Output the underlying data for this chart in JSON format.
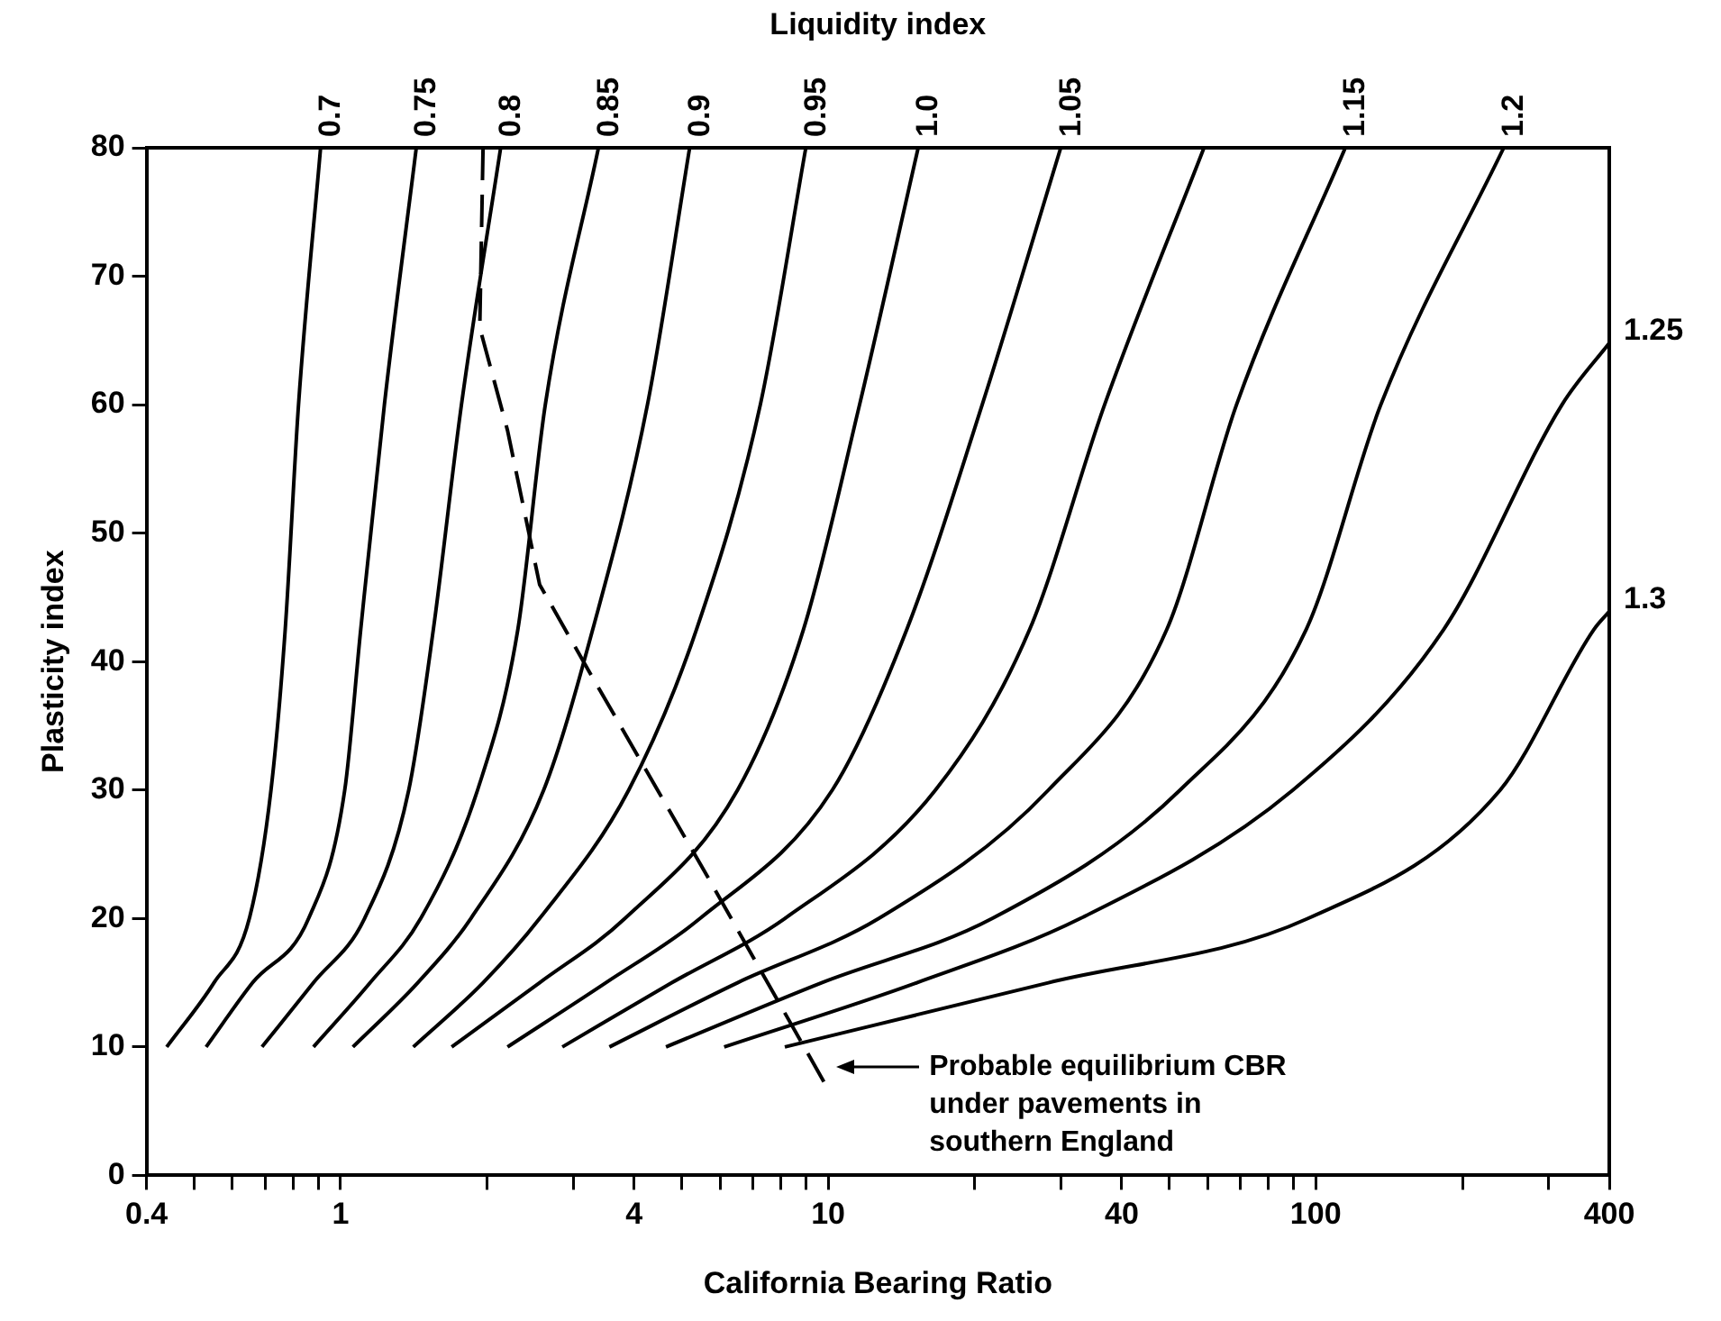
{
  "chart_data": {
    "type": "line",
    "xlabel": "California Bearing Ratio",
    "ylabel": "Plasticity index",
    "legend_title": "Liquidity index",
    "log": "x",
    "grid": false,
    "legend": false,
    "marker": "none",
    "xlim": [
      0.4,
      400
    ],
    "ylim": [
      0,
      80
    ],
    "xticks": [
      0.4,
      {
        "value": 0.5,
        "label": null
      },
      {
        "value": 0.6,
        "label": null
      },
      {
        "value": 0.7,
        "label": null
      },
      {
        "value": 0.8,
        "label": null
      },
      {
        "value": 0.9,
        "label": null
      },
      1,
      {
        "value": 2,
        "label": null
      },
      {
        "value": 3,
        "label": null
      },
      4,
      {
        "value": 5,
        "label": null
      },
      {
        "value": 6,
        "label": null
      },
      {
        "value": 7,
        "label": null
      },
      {
        "value": 8,
        "label": null
      },
      {
        "value": 9,
        "label": null
      },
      10,
      {
        "value": 20,
        "label": null
      },
      {
        "value": 30,
        "label": null
      },
      40,
      {
        "value": 50,
        "label": null
      },
      {
        "value": 60,
        "label": null
      },
      {
        "value": 70,
        "label": null
      },
      {
        "value": 80,
        "label": null
      },
      {
        "value": 90,
        "label": null
      },
      100,
      {
        "value": 200,
        "label": null
      },
      {
        "value": 300,
        "label": null
      },
      400
    ],
    "yticks": [
      0,
      10,
      20,
      30,
      40,
      50,
      60,
      70,
      80
    ],
    "series": [
      {
        "name": "0.7",
        "color": "#000000",
        "x": [
          0.44,
          0.55,
          0.65,
          0.72,
          0.77,
          0.82,
          0.91
        ],
        "values": [
          10,
          15,
          20,
          30,
          42.5,
          60,
          80
        ]
      },
      {
        "name": "0.75",
        "color": "#000000",
        "x": [
          0.53,
          0.66,
          0.86,
          1.02,
          1.1,
          1.23,
          1.43
        ],
        "values": [
          10,
          15,
          20,
          30,
          42.5,
          60,
          80
        ]
      },
      {
        "name": "0.8",
        "color": "#000000",
        "x": [
          0.69,
          0.88,
          1.12,
          1.38,
          1.55,
          1.77,
          2.13
        ],
        "values": [
          10,
          15,
          20,
          30,
          42.5,
          60,
          80
        ]
      },
      {
        "name": "0.85",
        "color": "#000000",
        "x": [
          0.88,
          1.15,
          1.46,
          1.91,
          2.31,
          2.63,
          3.38
        ],
        "values": [
          10,
          15,
          20,
          30,
          42.5,
          60,
          80
        ]
      },
      {
        "name": "0.9",
        "color": "#000000",
        "x": [
          1.06,
          1.44,
          1.85,
          2.61,
          3.29,
          4.26,
          5.2
        ],
        "values": [
          10,
          15,
          20,
          30,
          42.5,
          60,
          80
        ]
      },
      {
        "name": "0.95",
        "color": "#000000",
        "x": [
          1.41,
          1.96,
          2.56,
          3.9,
          5.37,
          7.26,
          9.0
        ],
        "values": [
          10,
          15,
          20,
          30,
          42.5,
          60,
          80
        ]
      },
      {
        "name": "1.0",
        "color": "#000000",
        "x": [
          1.69,
          2.56,
          3.83,
          6.52,
          8.9,
          11.6,
          15.3
        ],
        "values": [
          10,
          15,
          20,
          30,
          42.5,
          60,
          80
        ]
      },
      {
        "name": "1.05",
        "color": "#000000",
        "x": [
          2.2,
          3.5,
          5.46,
          10.2,
          14.5,
          20.7,
          30
        ],
        "values": [
          10,
          15,
          20,
          30,
          42.5,
          60,
          80
        ]
      },
      {
        "color": "#000000",
        "x": [
          2.85,
          4.78,
          8.15,
          16.6,
          25.9,
          36.9,
          59
        ],
        "values": [
          10,
          15,
          20,
          30,
          42.5,
          60,
          80
        ]
      },
      {
        "name": "1.15",
        "color": "#000000",
        "x": [
          3.56,
          6.52,
          12.7,
          28.3,
          49.5,
          68.8,
          115
        ],
        "values": [
          10,
          15,
          20,
          30,
          42.5,
          60,
          80
        ]
      },
      {
        "name": "1.2",
        "color": "#000000",
        "x": [
          4.65,
          9.7,
          21.7,
          52.7,
          95.6,
          136,
          243
        ],
        "values": [
          10,
          15,
          20,
          30,
          42.5,
          60,
          80
        ]
      },
      {
        "name": "1.25",
        "color": "#000000",
        "x": [
          6.12,
          15.2,
          32.9,
          89.8,
          183,
          320,
          400
        ],
        "values": [
          10,
          15,
          20,
          30,
          42.5,
          60,
          64.8
        ]
      },
      {
        "name": "1.3",
        "color": "#000000",
        "x": [
          8.15,
          28.3,
          96.4,
          239,
          372,
          400
        ],
        "values": [
          10,
          15,
          20,
          30,
          42.5,
          43.9
        ]
      },
      {
        "color": "#000000",
        "line_style": "dashed",
        "x": [
          1.96,
          1.93,
          2.2,
          2.56,
          3.26,
          5.71,
          7.26,
          9.9
        ],
        "values": [
          80,
          66,
          58,
          46,
          39,
          23,
          16,
          7
        ]
      }
    ],
    "annotations": [
      "Probable equilibrium CBR under pavements in southern England"
    ]
  }
}
